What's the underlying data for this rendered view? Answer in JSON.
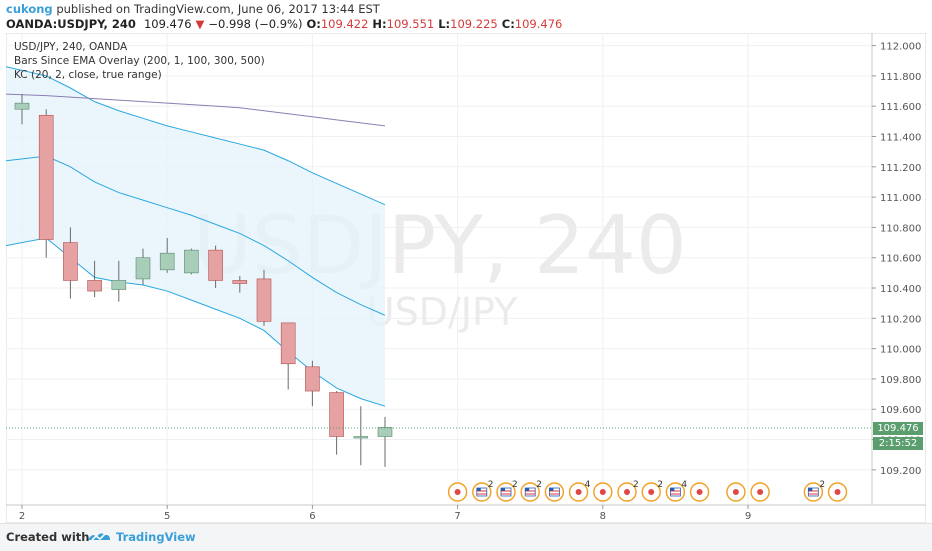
{
  "header": {
    "author": "cukong",
    "published_text": "published on TradingView.com, June 06, 2017 13:44 EST",
    "symbol_interval": "OANDA:USDJPY, 240",
    "last": "109.476",
    "change": "−0.998 (−0.9%)",
    "o_label": "O:",
    "o": "109.422",
    "h_label": "H:",
    "h": "109.551",
    "l_label": "L:",
    "l": "109.225",
    "c_label": "C:",
    "c": "109.476"
  },
  "legend": {
    "line1": "USD/JPY, 240, OANDA",
    "line2": "Bars Since EMA Overlay (200, 1, 100, 300, 500)",
    "line3": "KC (20, 2, close, true range)"
  },
  "watermark": {
    "big": "USDJPY, 240",
    "small": "USD/JPY"
  },
  "price_labels": {
    "last_price": "109.476",
    "countdown": "2:15:52"
  },
  "footer": {
    "created_with": "Created with",
    "brand": "TradingView"
  },
  "colors": {
    "up": "#a8cdb9",
    "down": "#e6a2a2",
    "kc_band": "#29a8e0",
    "ema": "#8a7fb4",
    "price_tag": "#5a9e6e",
    "author": "#3a9fd8"
  },
  "chart_data": {
    "type": "candlestick",
    "symbol": "USD/JPY",
    "interval": "240",
    "y_ticks": [
      "112.000",
      "111.800",
      "111.600",
      "111.400",
      "111.200",
      "111.000",
      "110.800",
      "110.600",
      "110.400",
      "110.200",
      "110.000",
      "109.800",
      "109.600",
      "109.400",
      "109.200"
    ],
    "y_tick_values": [
      112.0,
      111.8,
      111.6,
      111.4,
      111.2,
      111.0,
      110.8,
      110.6,
      110.4,
      110.2,
      110.0,
      109.8,
      109.6,
      109.4,
      109.2
    ],
    "ylim": [
      109.1,
      112.05
    ],
    "x_ticks": [
      "2",
      "5",
      "6",
      "7",
      "8",
      "9"
    ],
    "x_tick_index": [
      0,
      6,
      12,
      18,
      24,
      30
    ],
    "candles": [
      {
        "i": 0,
        "o": 111.58,
        "h": 111.68,
        "l": 111.48,
        "c": 111.62
      },
      {
        "i": 1,
        "o": 111.54,
        "h": 111.58,
        "l": 110.6,
        "c": 110.72
      },
      {
        "i": 2,
        "o": 110.7,
        "h": 110.8,
        "l": 110.33,
        "c": 110.45
      },
      {
        "i": 3,
        "o": 110.45,
        "h": 110.58,
        "l": 110.34,
        "c": 110.38
      },
      {
        "i": 4,
        "o": 110.39,
        "h": 110.58,
        "l": 110.31,
        "c": 110.45
      },
      {
        "i": 5,
        "o": 110.46,
        "h": 110.66,
        "l": 110.42,
        "c": 110.6
      },
      {
        "i": 6,
        "o": 110.52,
        "h": 110.73,
        "l": 110.5,
        "c": 110.63
      },
      {
        "i": 7,
        "o": 110.5,
        "h": 110.66,
        "l": 110.49,
        "c": 110.65
      },
      {
        "i": 8,
        "o": 110.65,
        "h": 110.68,
        "l": 110.4,
        "c": 110.45
      },
      {
        "i": 9,
        "o": 110.45,
        "h": 110.48,
        "l": 110.37,
        "c": 110.43
      },
      {
        "i": 10,
        "o": 110.46,
        "h": 110.52,
        "l": 110.15,
        "c": 110.18
      },
      {
        "i": 11,
        "o": 110.17,
        "h": 110.17,
        "l": 109.73,
        "c": 109.9
      },
      {
        "i": 12,
        "o": 109.88,
        "h": 109.92,
        "l": 109.62,
        "c": 109.72
      },
      {
        "i": 13,
        "o": 109.71,
        "h": 109.72,
        "l": 109.3,
        "c": 109.42
      },
      {
        "i": 14,
        "o": 109.41,
        "h": 109.62,
        "l": 109.23,
        "c": 109.42
      },
      {
        "i": 15,
        "o": 109.42,
        "h": 109.55,
        "l": 109.22,
        "c": 109.48
      }
    ],
    "indicators": {
      "kc_upper": [
        111.86,
        111.8,
        111.72,
        111.63,
        111.57,
        111.52,
        111.47,
        111.43,
        111.39,
        111.35,
        111.31,
        111.24,
        111.16,
        111.09,
        111.02,
        110.95
      ],
      "kc_middle": [
        111.24,
        111.27,
        111.2,
        111.1,
        111.03,
        110.98,
        110.93,
        110.88,
        110.82,
        110.76,
        110.68,
        110.58,
        110.47,
        110.37,
        110.29,
        110.22
      ],
      "kc_lower": [
        110.68,
        110.73,
        110.6,
        110.47,
        110.44,
        110.42,
        110.38,
        110.32,
        110.26,
        110.2,
        110.12,
        109.98,
        109.85,
        109.74,
        109.67,
        109.62
      ],
      "ema": [
        111.68,
        111.67,
        111.66,
        111.65,
        111.64,
        111.63,
        111.62,
        111.61,
        111.6,
        111.59,
        111.57,
        111.55,
        111.53,
        111.51,
        111.49,
        111.47
      ]
    },
    "events": [
      {
        "i": 18.0,
        "type": "dot"
      },
      {
        "i": 19.0,
        "type": "flag",
        "count": "2"
      },
      {
        "i": 20.0,
        "type": "flag",
        "count": "2"
      },
      {
        "i": 21.0,
        "type": "flag",
        "count": "2"
      },
      {
        "i": 22.0,
        "type": "flag"
      },
      {
        "i": 23.0,
        "type": "dot",
        "count": "4"
      },
      {
        "i": 24.0,
        "type": "dot"
      },
      {
        "i": 25.0,
        "type": "dot",
        "count": "2"
      },
      {
        "i": 26.0,
        "type": "dot",
        "count": "2"
      },
      {
        "i": 27.0,
        "type": "flag",
        "count": "4"
      },
      {
        "i": 28.0,
        "type": "dot"
      },
      {
        "i": 29.5,
        "type": "dot"
      },
      {
        "i": 30.5,
        "type": "dot"
      },
      {
        "i": 32.7,
        "type": "flag",
        "count": "2"
      },
      {
        "i": 33.7,
        "type": "dot"
      }
    ]
  }
}
